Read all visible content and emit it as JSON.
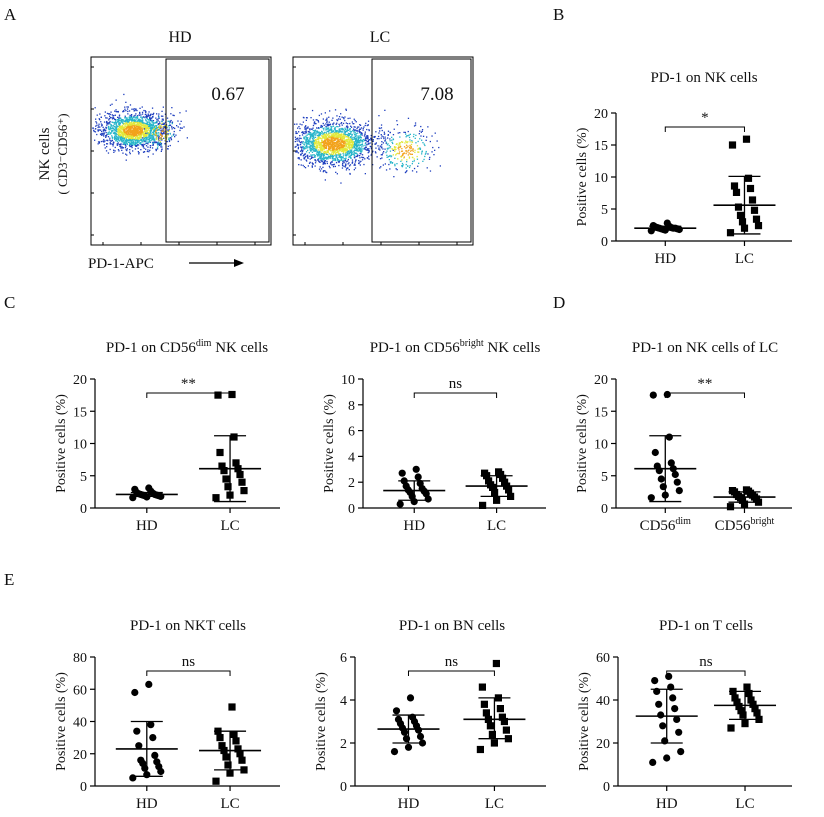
{
  "panel_letters": [
    "A",
    "B",
    "C",
    "D",
    "E"
  ],
  "flow_panel": {
    "y_label_line1": "NK cells",
    "y_label_line2": "( CD3⁻CD56⁺)",
    "x_label": "PD-1-APC",
    "plots": [
      {
        "title": "HD",
        "gate_value": "0.67"
      },
      {
        "title": "LC",
        "gate_value": "7.08"
      }
    ],
    "colors": {
      "low": "#1f3fbf",
      "mid": "#27b5c9",
      "high": "#e2e83a",
      "peak": "#f2a21b"
    }
  },
  "chart_data": [
    {
      "id": "B",
      "type": "scatter",
      "title": "PD-1 on NK cells",
      "ylabel": "Positive cells (%)",
      "ylim": [
        0,
        20
      ],
      "yticks": [
        0,
        5,
        10,
        15,
        20
      ],
      "categories": [
        "HD",
        "LC"
      ],
      "groups": [
        {
          "label": "HD",
          "marker": "circle",
          "mean": 2.0,
          "sd_low": 1.7,
          "sd_high": 2.3,
          "values": [
            1.6,
            1.7,
            1.8,
            1.8,
            1.9,
            1.9,
            2.0,
            2.0,
            2.0,
            2.1,
            2.1,
            2.2,
            2.3,
            2.4,
            2.8
          ]
        },
        {
          "label": "LC",
          "marker": "square",
          "mean": 5.6,
          "sd_low": 1.1,
          "sd_high": 10.1,
          "values": [
            1.3,
            2.0,
            2.4,
            3.0,
            3.4,
            4.0,
            4.8,
            5.3,
            6.4,
            7.6,
            8.2,
            8.6,
            9.8,
            15.0,
            15.9
          ]
        }
      ],
      "significance": "*"
    },
    {
      "id": "C1",
      "type": "scatter",
      "title": "PD-1 on CD56",
      "title_sup": "dim",
      "title_after": " NK cells",
      "ylabel": "Positive cells (%)",
      "ylim": [
        0,
        20
      ],
      "yticks": [
        0,
        5,
        10,
        15,
        20
      ],
      "categories": [
        "HD",
        "LC"
      ],
      "groups": [
        {
          "label": "HD",
          "marker": "circle",
          "mean": 2.1,
          "sd_low": 1.8,
          "sd_high": 2.4,
          "values": [
            1.6,
            1.7,
            1.8,
            1.9,
            1.9,
            2.0,
            2.0,
            2.1,
            2.1,
            2.2,
            2.3,
            2.4,
            2.6,
            2.9,
            3.1
          ]
        },
        {
          "label": "LC",
          "marker": "square",
          "mean": 6.1,
          "sd_low": 1.0,
          "sd_high": 11.2,
          "values": [
            1.6,
            2.0,
            2.7,
            3.3,
            4.0,
            4.5,
            5.2,
            5.8,
            6.1,
            6.5,
            7.0,
            8.6,
            11.0,
            17.5,
            17.6
          ]
        }
      ],
      "significance": "**"
    },
    {
      "id": "C2",
      "type": "scatter",
      "title": "PD-1 on CD56",
      "title_sup": "bright",
      "title_after": " NK cells",
      "ylabel": "Positive cells (%)",
      "ylim": [
        0,
        10
      ],
      "yticks": [
        0,
        2,
        4,
        6,
        8,
        10
      ],
      "categories": [
        "HD",
        "LC"
      ],
      "groups": [
        {
          "label": "HD",
          "marker": "circle",
          "mean": 1.35,
          "sd_low": 0.6,
          "sd_high": 2.1,
          "values": [
            0.3,
            0.5,
            0.7,
            0.9,
            1.1,
            1.2,
            1.3,
            1.4,
            1.5,
            1.7,
            1.9,
            2.1,
            2.4,
            2.7,
            3.0
          ]
        },
        {
          "label": "LC",
          "marker": "square",
          "mean": 1.7,
          "sd_low": 0.9,
          "sd_high": 2.5,
          "values": [
            0.2,
            0.6,
            0.9,
            1.2,
            1.4,
            1.6,
            1.7,
            1.8,
            2.0,
            2.1,
            2.3,
            2.5,
            2.6,
            2.7,
            2.8
          ]
        }
      ],
      "significance": "ns"
    },
    {
      "id": "D",
      "type": "scatter",
      "title": "PD-1 on NK cells of LC",
      "ylabel": "Positive cells (%)",
      "ylim": [
        0,
        20
      ],
      "yticks": [
        0,
        5,
        10,
        15,
        20
      ],
      "categories": [
        "CD56dim",
        "CD56bright"
      ],
      "groups": [
        {
          "label": "CD56",
          "label_sup": "dim",
          "marker": "circle",
          "mean": 6.1,
          "sd_low": 1.0,
          "sd_high": 11.2,
          "values": [
            1.6,
            2.0,
            2.7,
            3.3,
            4.0,
            4.5,
            5.2,
            5.8,
            6.1,
            6.5,
            7.0,
            8.6,
            11.0,
            17.5,
            17.6
          ]
        },
        {
          "label": "CD56",
          "label_sup": "bright",
          "marker": "square",
          "mean": 1.7,
          "sd_low": 0.9,
          "sd_high": 2.5,
          "values": [
            0.2,
            0.6,
            0.9,
            1.2,
            1.4,
            1.6,
            1.7,
            1.8,
            2.0,
            2.1,
            2.3,
            2.5,
            2.6,
            2.7,
            2.8
          ]
        }
      ],
      "significance": "**"
    },
    {
      "id": "E1",
      "type": "scatter",
      "title": "PD-1 on NKT cells",
      "ylabel": "Positive cells (%)",
      "ylim": [
        0,
        80
      ],
      "yticks": [
        0,
        20,
        40,
        60,
        80
      ],
      "categories": [
        "HD",
        "LC"
      ],
      "groups": [
        {
          "label": "HD",
          "marker": "circle",
          "mean": 23,
          "sd_low": 6,
          "sd_high": 40,
          "values": [
            5,
            7,
            9,
            11,
            12,
            14,
            15,
            16,
            19,
            25,
            30,
            34,
            38,
            58,
            63
          ]
        },
        {
          "label": "LC",
          "marker": "square",
          "mean": 22,
          "sd_low": 10,
          "sd_high": 34,
          "values": [
            3,
            8,
            10,
            13,
            16,
            18,
            20,
            22,
            23,
            25,
            28,
            30,
            32,
            34,
            49
          ]
        }
      ],
      "significance": "ns"
    },
    {
      "id": "E2",
      "type": "scatter",
      "title": "PD-1 on BN cells",
      "ylabel": "Positive cells (%)",
      "ylim": [
        0,
        6
      ],
      "yticks": [
        0,
        2,
        4,
        6
      ],
      "categories": [
        "HD",
        "LC"
      ],
      "groups": [
        {
          "label": "HD",
          "marker": "circle",
          "mean": 2.65,
          "sd_low": 2.0,
          "sd_high": 3.3,
          "values": [
            1.6,
            1.8,
            2.0,
            2.2,
            2.3,
            2.5,
            2.6,
            2.7,
            2.8,
            2.9,
            3.0,
            3.1,
            3.2,
            3.5,
            4.1
          ]
        },
        {
          "label": "LC",
          "marker": "square",
          "mean": 3.1,
          "sd_low": 2.2,
          "sd_high": 4.1,
          "values": [
            1.7,
            2.0,
            2.2,
            2.4,
            2.6,
            2.8,
            3.0,
            3.1,
            3.2,
            3.4,
            3.6,
            3.8,
            4.1,
            4.6,
            5.7
          ]
        }
      ],
      "significance": "ns"
    },
    {
      "id": "E3",
      "type": "scatter",
      "title": "PD-1 on T cells",
      "ylabel": "Positive cells (%)",
      "ylim": [
        0,
        60
      ],
      "yticks": [
        0,
        20,
        40,
        60
      ],
      "categories": [
        "HD",
        "LC"
      ],
      "groups": [
        {
          "label": "HD",
          "marker": "circle",
          "mean": 32.5,
          "sd_low": 20,
          "sd_high": 45,
          "values": [
            11,
            13,
            16,
            21,
            25,
            28,
            31,
            33,
            36,
            38,
            41,
            44,
            46,
            49,
            51
          ]
        },
        {
          "label": "LC",
          "marker": "square",
          "mean": 37.5,
          "sd_low": 31,
          "sd_high": 44,
          "values": [
            27,
            29,
            31,
            33,
            34,
            35,
            36,
            37,
            38,
            39,
            40,
            41,
            43,
            44,
            46
          ]
        }
      ],
      "significance": "ns"
    }
  ]
}
